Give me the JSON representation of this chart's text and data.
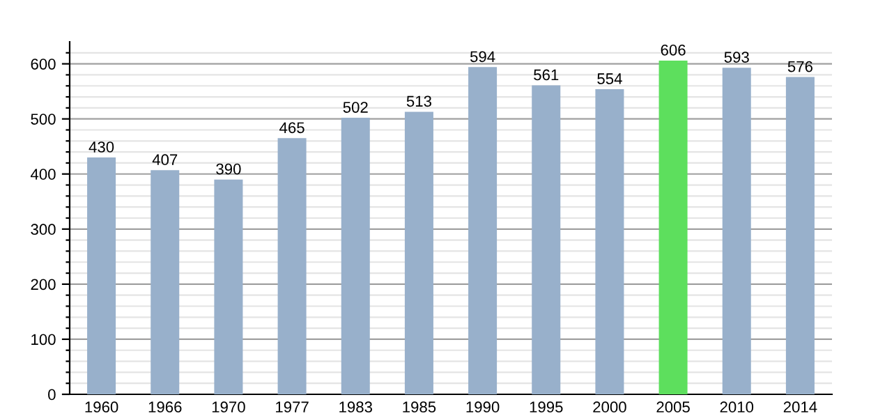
{
  "chart_data": {
    "type": "bar",
    "categories": [
      "1960",
      "1966",
      "1970",
      "1977",
      "1983",
      "1985",
      "1990",
      "1995",
      "2000",
      "2005",
      "2010",
      "2014"
    ],
    "values": [
      430,
      407,
      390,
      465,
      502,
      513,
      594,
      561,
      554,
      606,
      593,
      576
    ],
    "colors": [
      "#98b0cb",
      "#98b0cb",
      "#98b0cb",
      "#98b0cb",
      "#98b0cb",
      "#98b0cb",
      "#98b0cb",
      "#98b0cb",
      "#98b0cb",
      "#5ddf5d",
      "#98b0cb",
      "#98b0cb"
    ],
    "data_labels": true,
    "ylim": [
      0,
      640
    ],
    "yticks": [
      0,
      {
        "value": 20,
        "label": null
      },
      {
        "value": 40,
        "label": null
      },
      {
        "value": 60,
        "label": null
      },
      {
        "value": 80,
        "label": null
      },
      100,
      {
        "value": 120,
        "label": null
      },
      {
        "value": 140,
        "label": null
      },
      {
        "value": 160,
        "label": null
      },
      {
        "value": 180,
        "label": null
      },
      200,
      {
        "value": 220,
        "label": null
      },
      {
        "value": 240,
        "label": null
      },
      {
        "value": 260,
        "label": null
      },
      {
        "value": 280,
        "label": null
      },
      300,
      {
        "value": 320,
        "label": null
      },
      {
        "value": 340,
        "label": null
      },
      {
        "value": 360,
        "label": null
      },
      {
        "value": 380,
        "label": null
      },
      400,
      {
        "value": 420,
        "label": null
      },
      {
        "value": 440,
        "label": null
      },
      {
        "value": 460,
        "label": null
      },
      {
        "value": 480,
        "label": null
      },
      500,
      {
        "value": 520,
        "label": null
      },
      {
        "value": 540,
        "label": null
      },
      {
        "value": 560,
        "label": null
      },
      {
        "value": 580,
        "label": null
      },
      600,
      {
        "value": 620,
        "label": null
      }
    ],
    "grid": true
  }
}
